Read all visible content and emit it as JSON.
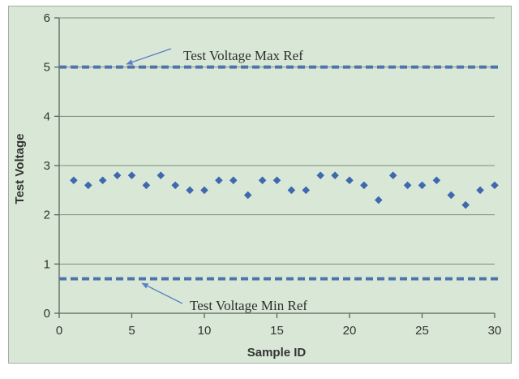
{
  "chart_data": {
    "type": "scatter",
    "title": "",
    "xlabel": "Sample ID",
    "ylabel": "Test Voltage",
    "xlim": [
      0,
      30
    ],
    "ylim": [
      0,
      6
    ],
    "x_ticks": [
      0,
      5,
      10,
      15,
      20,
      25,
      30
    ],
    "y_ticks": [
      0,
      1,
      2,
      3,
      4,
      5,
      6
    ],
    "grid": "horizontal",
    "legend": "none",
    "marker": "diamond",
    "x": [
      1,
      2,
      3,
      4,
      5,
      6,
      7,
      8,
      9,
      10,
      11,
      12,
      13,
      14,
      15,
      16,
      17,
      18,
      19,
      20,
      21,
      22,
      23,
      24,
      25,
      26,
      27,
      28,
      29,
      30
    ],
    "series": [
      {
        "name": "Test Voltage",
        "values": [
          2.7,
          2.6,
          2.7,
          2.8,
          2.8,
          2.6,
          2.8,
          2.6,
          2.5,
          2.5,
          2.7,
          2.7,
          2.4,
          2.7,
          2.7,
          2.5,
          2.5,
          2.8,
          2.8,
          2.7,
          2.6,
          2.3,
          2.8,
          2.6,
          2.6,
          2.7,
          2.4,
          2.2,
          2.5,
          2.6
        ]
      }
    ],
    "ref_lines": [
      {
        "label": "Test Voltage Max Ref",
        "value": 5.0
      },
      {
        "label": "Test Voltage Min Ref",
        "value": 0.7
      }
    ],
    "colors": {
      "background": "#d9e8d6",
      "marker": "#3f68ae",
      "ref_line": "#4f74ac",
      "grid": "#7c8c7c",
      "axis": "#55665a",
      "arrow": "#5b7fc4",
      "tick_text": "#333333",
      "annotation_text": "#2e2e2e"
    }
  }
}
